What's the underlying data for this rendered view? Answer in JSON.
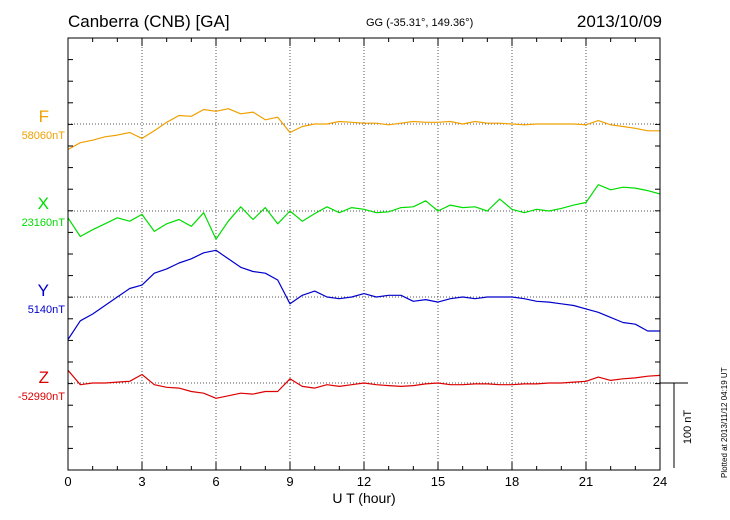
{
  "header": {
    "station": "Canberra (CNB)  [GA]",
    "coords": "GG (-35.31°, 149.36°)",
    "date": "2013/10/09"
  },
  "plotted_stamp": "Plotted at 2013/11/12 04:19 UT",
  "scale_bar_label": "100 nT",
  "colors": {
    "F": "#f0a000",
    "X": "#00dd00",
    "Y": "#0000cc",
    "Z": "#dd0000"
  },
  "chart_data": {
    "type": "line",
    "title": "Canberra (CNB)  [GA]",
    "xlabel": "U T (hour)",
    "x_ticks": [
      "0",
      "3",
      "6",
      "9",
      "12",
      "15",
      "18",
      "21",
      "24"
    ],
    "xlim": [
      0,
      24
    ],
    "scale_nT": 100,
    "grid": true,
    "series": [
      {
        "name": "F",
        "baseline_label": "58060nT",
        "x": [
          0,
          0.5,
          1,
          1.5,
          2,
          2.5,
          3,
          3.5,
          4,
          4.5,
          5,
          5.5,
          6,
          6.5,
          7,
          7.5,
          8,
          8.5,
          9,
          9.5,
          10,
          10.5,
          11,
          11.5,
          12,
          12.5,
          13,
          13.5,
          14,
          14.5,
          15,
          15.5,
          16,
          16.5,
          17,
          17.5,
          18,
          18.5,
          19,
          19.5,
          20,
          20.5,
          21,
          21.5,
          22,
          22.5,
          23,
          23.5,
          24
        ],
        "values": [
          -30,
          -22,
          -19,
          -15,
          -13,
          -10,
          -17,
          -8,
          2,
          10,
          9,
          17,
          15,
          18,
          12,
          14,
          5,
          8,
          -10,
          -3,
          0,
          0,
          3,
          2,
          1,
          1,
          -1,
          1,
          3,
          2,
          2,
          3,
          0,
          3,
          1,
          1,
          0,
          -1,
          0,
          0,
          0,
          0,
          -1,
          4,
          -1,
          -3,
          -5,
          -8,
          -8
        ]
      },
      {
        "name": "X",
        "baseline_label": "23160nT",
        "x": [
          0,
          0.5,
          1,
          1.5,
          2,
          2.5,
          3,
          3.5,
          4,
          4.5,
          5,
          5.5,
          6,
          6.5,
          7,
          7.5,
          8,
          8.5,
          9,
          9.5,
          10,
          10.5,
          11,
          11.5,
          12,
          12.5,
          13,
          13.5,
          14,
          14.5,
          15,
          15.5,
          16,
          16.5,
          17,
          17.5,
          18,
          18.5,
          19,
          19.5,
          20,
          20.5,
          21,
          21.5,
          22,
          22.5,
          23,
          23.5,
          24
        ],
        "values": [
          -8,
          -30,
          -22,
          -15,
          -8,
          -12,
          -4,
          -24,
          -15,
          -10,
          -18,
          -2,
          -33,
          -12,
          5,
          -10,
          4,
          -15,
          0,
          -12,
          -3,
          5,
          -2,
          4,
          2,
          -2,
          -1,
          4,
          5,
          12,
          0,
          7,
          4,
          5,
          0,
          14,
          2,
          -2,
          2,
          0,
          3,
          7,
          10,
          31,
          25,
          28,
          27,
          24,
          20
        ]
      },
      {
        "name": "Y",
        "baseline_label": "5140nT",
        "x": [
          0,
          0.5,
          1,
          1.5,
          2,
          2.5,
          3,
          3.5,
          4,
          4.5,
          5,
          5.5,
          6,
          6.5,
          7,
          7.5,
          8,
          8.5,
          9,
          9.5,
          10,
          10.5,
          11,
          11.5,
          12,
          12.5,
          13,
          13.5,
          14,
          14.5,
          15,
          15.5,
          16,
          16.5,
          17,
          17.5,
          18,
          18.5,
          19,
          19.5,
          20,
          20.5,
          21,
          21.5,
          22,
          22.5,
          23,
          23.5,
          24
        ],
        "values": [
          -50,
          -28,
          -20,
          -10,
          0,
          10,
          14,
          28,
          33,
          40,
          45,
          52,
          55,
          45,
          35,
          30,
          28,
          20,
          -8,
          2,
          7,
          0,
          -2,
          0,
          4,
          0,
          2,
          2,
          -5,
          -3,
          -6,
          -2,
          0,
          -2,
          0,
          0,
          0,
          -2,
          -5,
          -6,
          -8,
          -10,
          -14,
          -18,
          -24,
          -30,
          -32,
          -40,
          -40
        ]
      },
      {
        "name": "Z",
        "baseline_label": "-52990nT",
        "x": [
          0,
          0.5,
          1,
          1.5,
          2,
          2.5,
          3,
          3.5,
          4,
          4.5,
          5,
          5.5,
          6,
          6.5,
          7,
          7.5,
          8,
          8.5,
          9,
          9.5,
          10,
          10.5,
          11,
          11.5,
          12,
          12.5,
          13,
          13.5,
          14,
          14.5,
          15,
          15.5,
          16,
          16.5,
          17,
          17.5,
          18,
          18.5,
          19,
          19.5,
          20,
          20.5,
          21,
          21.5,
          22,
          22.5,
          23,
          23.5,
          24
        ],
        "values": [
          15,
          -2,
          0,
          0,
          1,
          2,
          10,
          -2,
          -5,
          -6,
          -10,
          -12,
          -18,
          -15,
          -12,
          -13,
          -10,
          -10,
          5,
          -4,
          -6,
          -2,
          -4,
          -2,
          0,
          -2,
          -3,
          -4,
          -3,
          -1,
          0,
          -2,
          -2,
          -1,
          -1,
          -2,
          -2,
          -1,
          -1,
          0,
          0,
          1,
          2,
          7,
          3,
          5,
          6,
          8,
          9
        ]
      }
    ]
  }
}
